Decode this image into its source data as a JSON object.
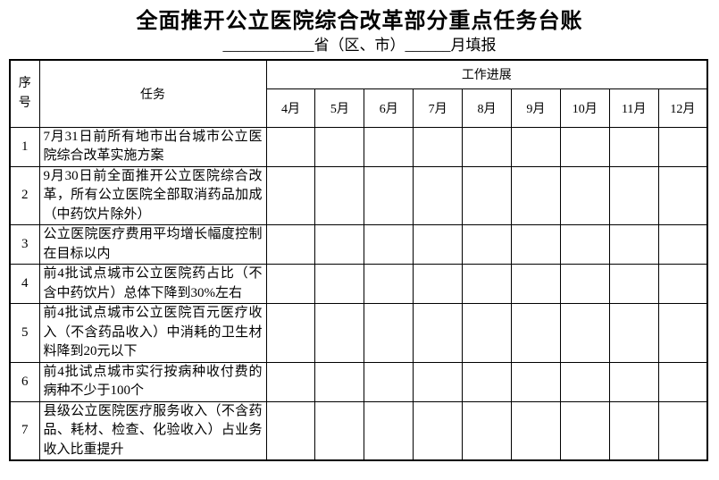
{
  "page": {
    "title": "全面推开公立医院综合改革部分重点任务台账",
    "subtitle": "____________省（区、市）______月填报"
  },
  "table": {
    "header": {
      "col_no": "序号",
      "col_task": "任务",
      "col_progress": "工作进展"
    },
    "months": [
      "4月",
      "5月",
      "6月",
      "7月",
      "8月",
      "9月",
      "10月",
      "11月",
      "12月"
    ],
    "rows": [
      {
        "no": "1",
        "task": "7月31日前所有地市出台城市公立医院综合改革实施方案"
      },
      {
        "no": "2",
        "task": "9月30日前全面推开公立医院综合改革，所有公立医院全部取消药品加成（中药饮片除外）"
      },
      {
        "no": "3",
        "task": "公立医院医疗费用平均增长幅度控制在目标以内"
      },
      {
        "no": "4",
        "task": "前4批试点城市公立医院药占比（不含中药饮片）总体下降到30%左右"
      },
      {
        "no": "5",
        "task": "前4批试点城市公立医院百元医疗收入（不含药品收入）中消耗的卫生材料降到20元以下"
      },
      {
        "no": "6",
        "task": "前4批试点城市实行按病种收付费的病种不少于100个"
      },
      {
        "no": "7",
        "task": "县级公立医院医疗服务收入（不含药品、耗材、检查、化验收入）占业务收入比重提升"
      }
    ]
  }
}
